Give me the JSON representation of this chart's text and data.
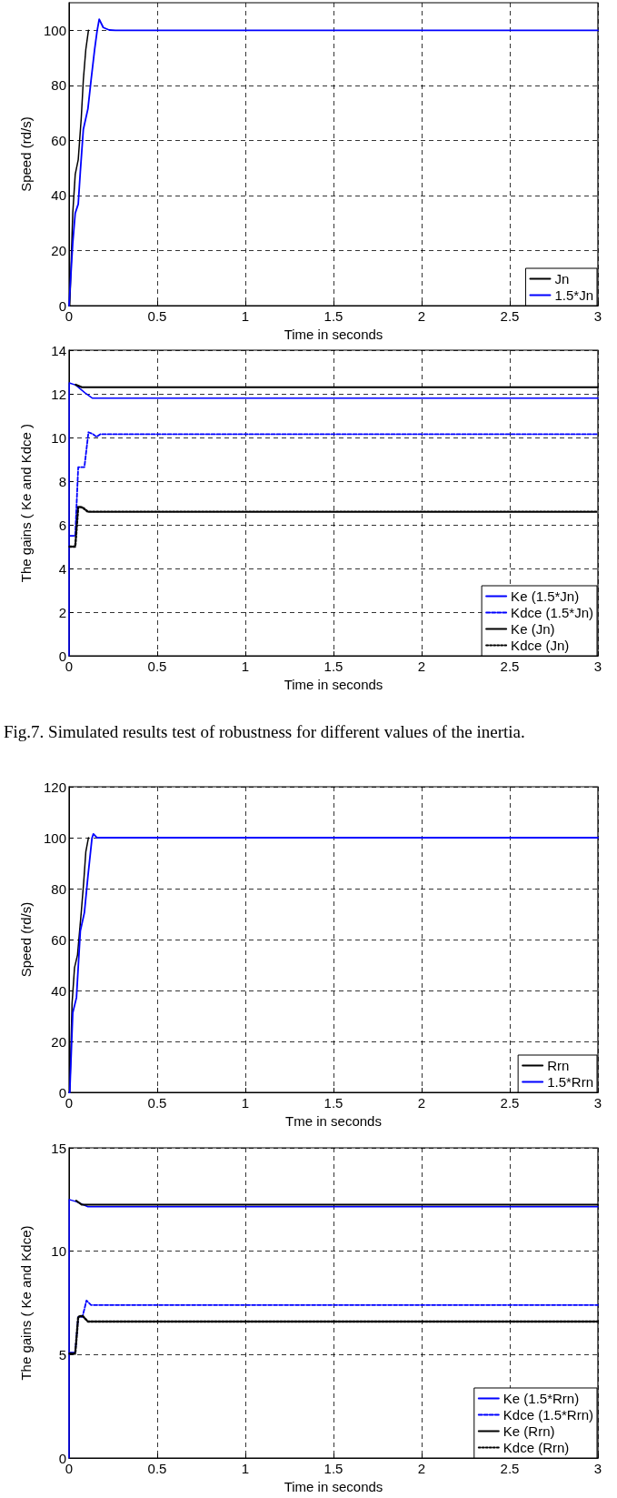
{
  "chart_data": [
    {
      "type": "line",
      "xlabel": "Time in seconds",
      "ylabel": "Speed (rd/s)",
      "xlim": [
        0,
        3
      ],
      "xticks": [
        0,
        0.5,
        1,
        1.5,
        2,
        2.5,
        3
      ],
      "ylim": [
        0,
        110
      ],
      "yticks": [
        0,
        20,
        40,
        60,
        80,
        100
      ],
      "grid": true,
      "legend": "bottom right",
      "series": [
        {
          "name": "Jn",
          "color": "#000000",
          "line_style": "solid",
          "x": [
            0,
            0.004,
            0.021,
            0.035,
            0.052,
            0.069,
            0.081,
            0.095,
            0.11
          ],
          "values": [
            0,
            0,
            33.6,
            47.7,
            53,
            68,
            82,
            93,
            100
          ]
        },
        {
          "name": "1.5*Jn",
          "color": "#0000ff",
          "line_style": "solid",
          "x": [
            0,
            0.003,
            0.021,
            0.035,
            0.052,
            0.064,
            0.081,
            0.107,
            0.125,
            0.145,
            0.159,
            0.171,
            0.194,
            0.228,
            0.263,
            0.5,
            1,
            1.5,
            2,
            2.5,
            3
          ],
          "values": [
            0,
            0,
            22.8,
            33.6,
            36.9,
            48.8,
            64,
            71.5,
            82,
            93,
            99.7,
            104,
            101,
            100.1,
            100,
            100,
            100,
            100,
            100,
            100,
            100
          ]
        }
      ]
    },
    {
      "type": "line",
      "xlabel": "Time in seconds",
      "ylabel": "The gains ( Ke and Kdce )",
      "xlim": [
        0,
        3
      ],
      "xticks": [
        0,
        0.5,
        1,
        1.5,
        2,
        2.5,
        3
      ],
      "ylim": [
        0,
        14
      ],
      "yticks": [
        0,
        2,
        4,
        6,
        8,
        10,
        12,
        14
      ],
      "grid": true,
      "legend": "bottom right",
      "annotations": [
        "Fig.7. Simulated results test of robustness for different values of the inertia."
      ],
      "series": [
        {
          "name": "Ke (1.5*Jn)",
          "color": "#0000ff",
          "line_style": "solid",
          "x": [
            0,
            0.001,
            0.038,
            0.09,
            0.133,
            0.5,
            1,
            1.5,
            2,
            2.5,
            3
          ],
          "values": [
            0,
            12.5,
            12.4,
            12.05,
            11.8,
            11.8,
            11.8,
            11.8,
            11.8,
            11.8,
            11.8
          ]
        },
        {
          "name": "Kdce (1.5*Jn)",
          "color": "#0000ff",
          "line_style": "dashed",
          "x": [
            0.007,
            0.035,
            0.052,
            0.087,
            0.11,
            0.133,
            0.156,
            0.177,
            0.5,
            1,
            1.5,
            2,
            2.5,
            3
          ],
          "values": [
            5.5,
            5.5,
            8.64,
            8.64,
            10.24,
            10.17,
            10.03,
            10.15,
            10.15,
            10.15,
            10.15,
            10.15,
            10.15,
            10.15
          ]
        },
        {
          "name": "Ke (Jn)",
          "color": "#000000",
          "line_style": "solid",
          "x": [
            0.038,
            0.073,
            0.5,
            1,
            1.5,
            2,
            2.5,
            3
          ],
          "values": [
            12.42,
            12.3,
            12.3,
            12.3,
            12.3,
            12.3,
            12.3,
            12.3
          ]
        },
        {
          "name": "Kdce (Jn)",
          "color": "#000000",
          "line_style": "dotted",
          "x": [
            0.003,
            0.035,
            0.052,
            0.076,
            0.107,
            0.5,
            1,
            1.5,
            2,
            2.5,
            3
          ],
          "values": [
            5,
            5,
            6.83,
            6.8,
            6.6,
            6.6,
            6.6,
            6.6,
            6.6,
            6.6,
            6.6
          ]
        }
      ]
    },
    {
      "type": "line",
      "xlabel": "Tme in seconds",
      "ylabel": "Speed (rd/s)",
      "xlim": [
        0,
        3
      ],
      "xticks": [
        0,
        0.5,
        1,
        1.5,
        2,
        2.5,
        3
      ],
      "ylim": [
        0,
        120
      ],
      "yticks": [
        0,
        20,
        40,
        60,
        80,
        100,
        120
      ],
      "grid": true,
      "legend": "bottom right",
      "series": [
        {
          "name": "Rrn",
          "color": "#000000",
          "line_style": "solid",
          "x": [
            0,
            0.004,
            0.017,
            0.031,
            0.048,
            0.069,
            0.083,
            0.095,
            0.11
          ],
          "values": [
            0,
            0,
            34.9,
            49,
            54,
            70.6,
            82.5,
            94.4,
            100
          ]
        },
        {
          "name": "1.5*Rrn",
          "color": "#0000ff",
          "line_style": "solid",
          "x": [
            0,
            0.004,
            0.021,
            0.042,
            0.064,
            0.087,
            0.107,
            0.13,
            0.138,
            0.159,
            0.5,
            1,
            1.5,
            2,
            2.5,
            3
          ],
          "values": [
            0,
            0,
            31.3,
            37.2,
            63.4,
            70.6,
            84.8,
            99.8,
            101.5,
            100,
            100,
            100,
            100,
            100,
            100,
            100
          ]
        }
      ]
    },
    {
      "type": "line",
      "xlabel": "Time in seconds",
      "ylabel": "The gains ( Ke and Kdce)",
      "xlim": [
        0,
        3
      ],
      "xticks": [
        0,
        0.5,
        1,
        1.5,
        2,
        2.5,
        3
      ],
      "ylim": [
        0,
        15
      ],
      "yticks": [
        0,
        5,
        10,
        15
      ],
      "grid": true,
      "legend": "bottom right",
      "series": [
        {
          "name": "Ke (1.5*Rrn)",
          "color": "#0000ff",
          "line_style": "solid",
          "x": [
            0,
            0.001,
            0.04,
            0.107,
            0.5,
            1,
            1.5,
            2,
            2.5,
            3
          ],
          "values": [
            0,
            12.5,
            12.4,
            12.15,
            12.15,
            12.15,
            12.15,
            12.15,
            12.15,
            12.15
          ]
        },
        {
          "name": "Kdce (1.5*Rrn)",
          "color": "#0000ff",
          "line_style": "dashed",
          "x": [
            0.007,
            0.035,
            0.052,
            0.076,
            0.099,
            0.125,
            0.5,
            1,
            1.5,
            2,
            2.5,
            3
          ],
          "values": [
            5.1,
            5.1,
            6.83,
            6.83,
            7.62,
            7.4,
            7.4,
            7.4,
            7.4,
            7.4,
            7.4,
            7.4
          ]
        },
        {
          "name": "Ke (Rrn)",
          "color": "#000000",
          "line_style": "solid",
          "x": [
            0.04,
            0.073,
            0.5,
            1,
            1.5,
            2,
            2.5,
            3
          ],
          "values": [
            12.45,
            12.25,
            12.25,
            12.25,
            12.25,
            12.25,
            12.25,
            12.25
          ]
        },
        {
          "name": "Kdce (Rrn)",
          "color": "#000000",
          "line_style": "dotted",
          "x": [
            0.003,
            0.035,
            0.052,
            0.076,
            0.107,
            0.5,
            1,
            1.5,
            2,
            2.5,
            3
          ],
          "values": [
            5.05,
            5.05,
            6.83,
            6.88,
            6.6,
            6.6,
            6.6,
            6.6,
            6.6,
            6.6,
            6.6
          ]
        }
      ]
    }
  ]
}
